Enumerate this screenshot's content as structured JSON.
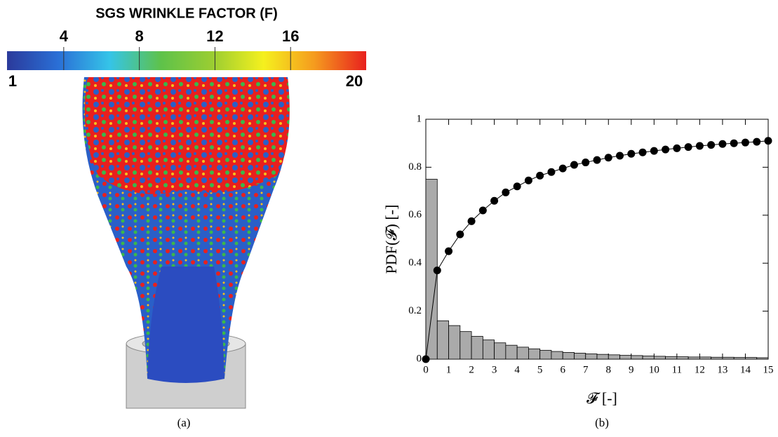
{
  "chart_data": [
    {
      "type": "colorbar",
      "title": "SGS WRINKLE FACTOR (F)",
      "clim": [
        1,
        20
      ],
      "cticks": [
        4,
        8,
        12,
        16
      ],
      "colormap": [
        "#2b3a9b",
        "#2a6fd6",
        "#35c4e8",
        "#5ec24a",
        "#9acd32",
        "#f5f01e",
        "#f59a1e",
        "#e8201e"
      ],
      "caption": "(a)"
    },
    {
      "type": "histogram",
      "xlabel": "𝓕 [-]",
      "ylabel": "PDF(𝓕) [-]",
      "caption": "(b)",
      "bins": [
        0,
        0.5,
        1,
        1.5,
        2,
        2.5,
        3,
        3.5,
        4,
        4.5,
        5,
        5.5,
        6,
        6.5,
        7,
        7.5,
        8,
        8.5,
        9,
        9.5,
        10,
        10.5,
        11,
        11.5,
        12,
        12.5,
        13,
        13.5,
        14,
        14.5,
        15
      ],
      "counts": [
        0.75,
        0.16,
        0.14,
        0.115,
        0.095,
        0.08,
        0.068,
        0.058,
        0.05,
        0.043,
        0.037,
        0.032,
        0.028,
        0.025,
        0.022,
        0.02,
        0.018,
        0.016,
        0.015,
        0.013,
        0.012,
        0.011,
        0.01,
        0.009,
        0.009,
        0.008,
        0.008,
        0.007,
        0.007,
        0.006
      ],
      "color": "#aaaaaa",
      "series": [
        {
          "color": "#000000",
          "x": [
            0,
            0.5,
            1,
            1.5,
            2,
            2.5,
            3,
            3.5,
            4,
            4.5,
            5,
            5.5,
            6,
            6.5,
            7,
            7.5,
            8,
            8.5,
            9,
            9.5,
            10,
            10.5,
            11,
            11.5,
            12,
            12.5,
            13,
            13.5,
            14,
            14.5,
            15
          ],
          "values": [
            0,
            0.37,
            0.45,
            0.52,
            0.575,
            0.62,
            0.66,
            0.695,
            0.72,
            0.745,
            0.765,
            0.78,
            0.795,
            0.81,
            0.82,
            0.83,
            0.84,
            0.848,
            0.856,
            0.862,
            0.868,
            0.874,
            0.879,
            0.884,
            0.889,
            0.893,
            0.897,
            0.9,
            0.903,
            0.906,
            0.91
          ]
        }
      ],
      "xlim": [
        0,
        15
      ],
      "ylim": [
        0,
        1
      ],
      "xticks": [
        0,
        1,
        2,
        3,
        4,
        5,
        6,
        7,
        8,
        9,
        10,
        11,
        12,
        13,
        14,
        15
      ],
      "yticks": [
        0,
        0.2,
        0.4,
        0.6,
        0.8,
        1
      ]
    }
  ]
}
